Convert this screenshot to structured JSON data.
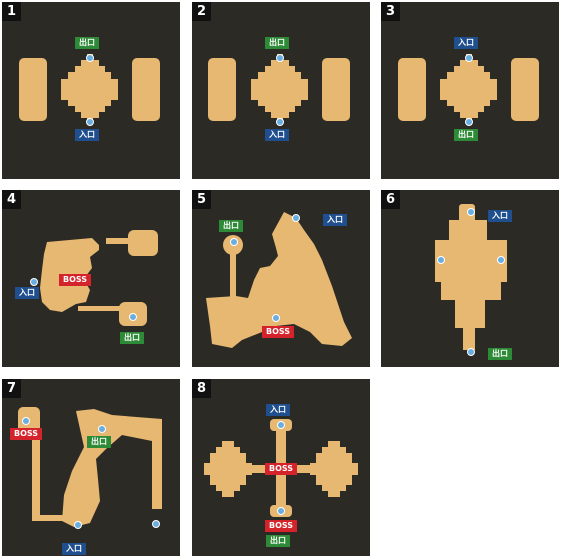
{
  "labels": {
    "exit": "出口",
    "entrance": "入口",
    "boss": "BOSS"
  },
  "panels": [
    {
      "number": "1"
    },
    {
      "number": "2"
    },
    {
      "number": "3"
    },
    {
      "number": "4"
    },
    {
      "number": "5"
    },
    {
      "number": "6"
    },
    {
      "number": "7"
    },
    {
      "number": "8"
    }
  ],
  "colors": {
    "panel_bg": "#2c2a24",
    "room": "#e7b872",
    "marker": "#6aaee0",
    "exit": "#2d8a36",
    "entrance": "#1f4f8e",
    "boss": "#d4232a"
  }
}
